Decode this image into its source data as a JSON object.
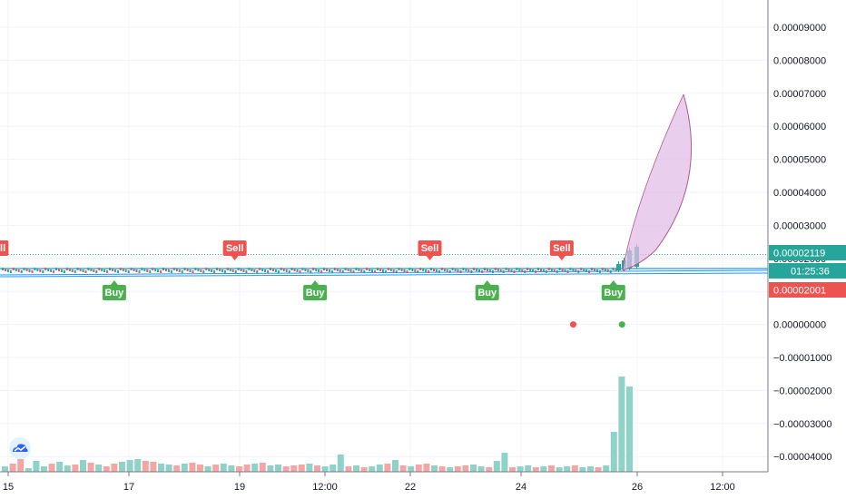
{
  "chart_data": {
    "type": "candlestick",
    "title": "",
    "xlabel": "",
    "ylabel": "",
    "ylim": [
      -4.5e-05,
      9.7e-05
    ],
    "x_ticks": [
      "15",
      "17",
      "19",
      "12:00",
      "22",
      "24",
      "26",
      "12:00"
    ],
    "y_ticks": [
      "0.00009000",
      "0.00008000",
      "0.00007000",
      "0.00006000",
      "0.00005000",
      "0.00004000",
      "0.00003000",
      "0.00002000",
      "0.00001000",
      "0.00000000",
      "−0.00001000",
      "−0.00002000",
      "−0.00003000",
      "−0.00004000"
    ],
    "price_labels": [
      {
        "id": "last",
        "text": "0.00002119",
        "value": 2.119e-05,
        "color": "#26a69a"
      },
      {
        "id": "countdown",
        "text": "01:25:36",
        "color": "#26a69a"
      },
      {
        "id": "level",
        "text": "0.00002001",
        "value": 2.001e-05,
        "color": "#ef5350"
      }
    ],
    "signals": [
      {
        "label": "Sell",
        "kind": "sell",
        "day": 14.8
      },
      {
        "label": "Sell",
        "kind": "sell",
        "day": 18.95
      },
      {
        "label": "Sell",
        "kind": "sell",
        "day": 22.35
      },
      {
        "label": "Sell",
        "kind": "sell",
        "day": 24.65
      },
      {
        "label": "Buy",
        "kind": "buy",
        "day": 16.85
      },
      {
        "label": "Buy",
        "kind": "buy",
        "day": 20.35
      },
      {
        "label": "Buy",
        "kind": "buy",
        "day": 23.35
      },
      {
        "label": "Buy",
        "kind": "buy",
        "day": 25.55
      }
    ],
    "dots": [
      {
        "day": 24.85,
        "value": 0.0,
        "color": "#ef5350"
      },
      {
        "day": 25.7,
        "value": 0.0,
        "color": "#4caf50"
      }
    ],
    "colors": {
      "up": "#26a69a",
      "down": "#ef5350",
      "volume_up": "#8fd3c8",
      "volume_down": "#f5a6a4",
      "line": "#2196f3",
      "arc_fill": "#e1bee7",
      "arc_stroke": "#b05a8a",
      "grid": "#f0f3fa"
    },
    "logo_icon": "tradingview-cloud-icon"
  }
}
